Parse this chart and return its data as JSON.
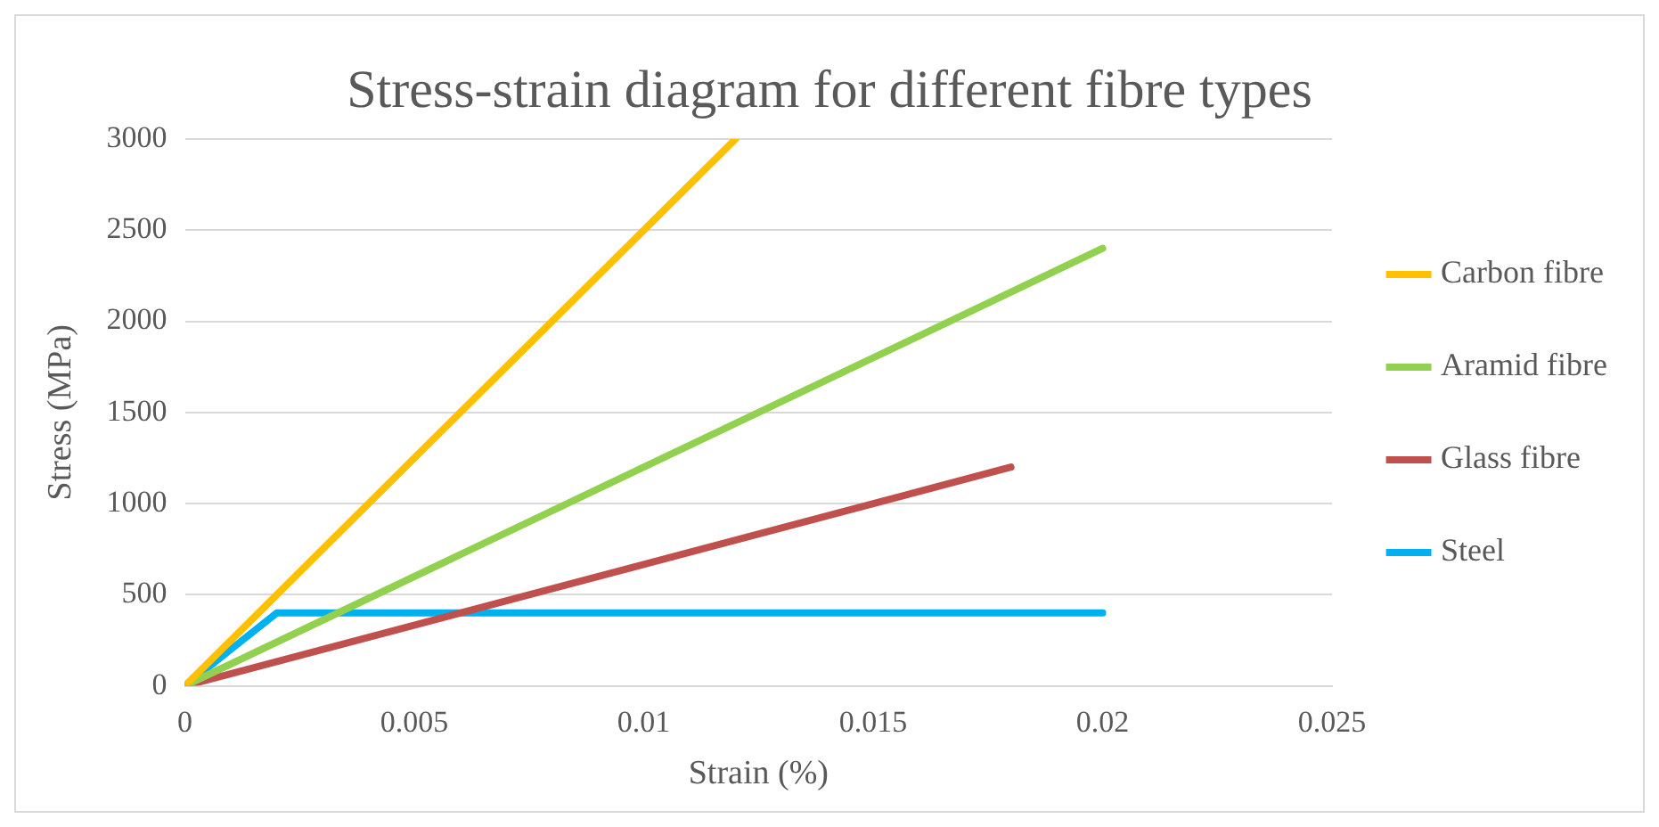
{
  "chart_data": {
    "type": "line",
    "title": "Stress-strain diagram for different fibre types",
    "xlabel": "Strain (%)",
    "ylabel": "Stress (MPa)",
    "xlim": [
      0,
      0.025
    ],
    "xticks": [
      0,
      0.005,
      0.01,
      0.015,
      0.02,
      0.025
    ],
    "ylim": [
      0,
      3000
    ],
    "yticks": [
      0,
      500,
      1000,
      1500,
      2000,
      2500,
      3000
    ],
    "grid": "y",
    "legend": "right",
    "marker": "none",
    "line_style": "solid",
    "series": [
      {
        "name": "Carbon fibre",
        "color": "#ffc000",
        "x": [
          0,
          0.012
        ],
        "values": [
          0,
          3000
        ]
      },
      {
        "name": "Aramid fibre",
        "color": "#92d050",
        "x": [
          0,
          0.02
        ],
        "values": [
          0,
          2400
        ]
      },
      {
        "name": "Glass fibre",
        "color": "#c0504d",
        "x": [
          0,
          0.018
        ],
        "values": [
          0,
          1200
        ]
      },
      {
        "name": "Steel",
        "color": "#00b0f0",
        "x": [
          0,
          0.002,
          0.02
        ],
        "values": [
          0,
          400,
          400
        ]
      }
    ]
  }
}
